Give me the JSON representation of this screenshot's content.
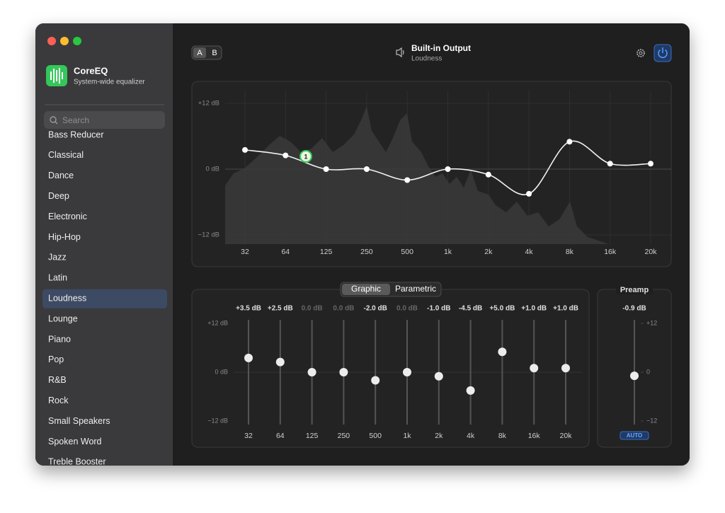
{
  "sidebar": {
    "app_name": "CoreEQ",
    "app_subtitle": "System-wide equalizer",
    "search_placeholder": "Search",
    "presets": [
      "Bass Reducer",
      "Classical",
      "Dance",
      "Deep",
      "Electronic",
      "Hip-Hop",
      "Jazz",
      "Latin",
      "Loudness",
      "Lounge",
      "Piano",
      "Pop",
      "R&B",
      "Rock",
      "Small Speakers",
      "Spoken Word",
      "Treble Booster"
    ],
    "selected_index": 8
  },
  "toolbar": {
    "ab": [
      "A",
      "B"
    ],
    "output_name": "Built-in Output",
    "output_preset": "Loudness"
  },
  "graph": {
    "ylim": [
      -14,
      14
    ],
    "yticks": [
      {
        "value": 12,
        "label": "+12 dB"
      },
      {
        "value": 0,
        "label": "0 dB"
      },
      {
        "value": -12,
        "label": "−12 dB"
      }
    ],
    "node_label": "1"
  },
  "bands": {
    "frequencies": [
      "32",
      "64",
      "125",
      "250",
      "500",
      "1k",
      "2k",
      "4k",
      "8k",
      "16k",
      "20k"
    ],
    "values": [
      3.5,
      2.5,
      0,
      0,
      -2,
      0,
      -1,
      -4.5,
      5,
      1,
      1
    ],
    "value_labels": [
      "+3.5 dB",
      "+2.5 dB",
      "0.0 dB",
      "0.0 dB",
      "-2.0 dB",
      "0.0 dB",
      "-1.0 dB",
      "-4.5 dB",
      "+5.0 dB",
      "+1.0 dB",
      "+1.0 dB"
    ]
  },
  "tabs": [
    "Graphic",
    "Parametric"
  ],
  "active_tab": 0,
  "sliders": {
    "ylim": [
      -13,
      13
    ],
    "yticks": [
      {
        "value": 12,
        "label": "+12 dB"
      },
      {
        "value": 0,
        "label": "0 dB"
      },
      {
        "value": -12,
        "label": "−12 dB"
      }
    ]
  },
  "preamp": {
    "title": "Preamp",
    "value": -0.9,
    "value_label": "-0.9 dB",
    "ylim": [
      -13,
      13
    ],
    "yticks": [
      {
        "value": 12,
        "label": "+12"
      },
      0,
      {
        "value": -12,
        "label": "−12"
      }
    ],
    "auto_label": "AUTO"
  }
}
